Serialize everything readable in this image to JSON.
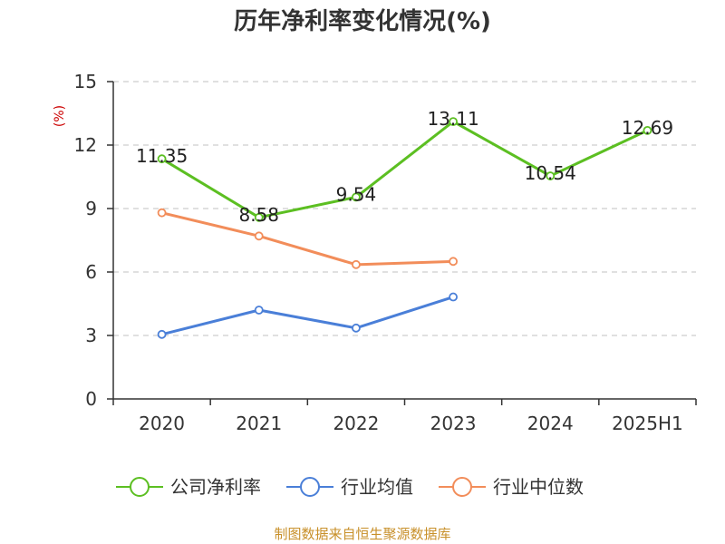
{
  "chart_data": {
    "type": "line",
    "title": "历年净利率变化情况(%)",
    "ylabel": "(%)",
    "xlabel": "",
    "categories": [
      "2020",
      "2021",
      "2022",
      "2023",
      "2024",
      "2025H1"
    ],
    "ylim": [
      0,
      15
    ],
    "yticks": [
      0,
      3,
      6,
      9,
      12,
      15
    ],
    "grid": true,
    "legend_position": "bottom",
    "series": [
      {
        "name": "公司净利率",
        "color": "#5cbf22",
        "values": [
          11.35,
          8.58,
          9.54,
          13.11,
          10.54,
          12.69
        ],
        "labels": [
          "11.35",
          "8.58",
          "9.54",
          "13.11",
          "10.54",
          "12.69"
        ]
      },
      {
        "name": "行业均值",
        "color": "#4a7fd8",
        "values": [
          3.05,
          4.2,
          3.35,
          4.82,
          null,
          null
        ],
        "labels": null
      },
      {
        "name": "行业中位数",
        "color": "#f28d5a",
        "values": [
          8.8,
          7.7,
          6.35,
          6.5,
          null,
          null
        ],
        "labels": null
      }
    ]
  },
  "source": "制图数据来自恒生聚源数据库"
}
